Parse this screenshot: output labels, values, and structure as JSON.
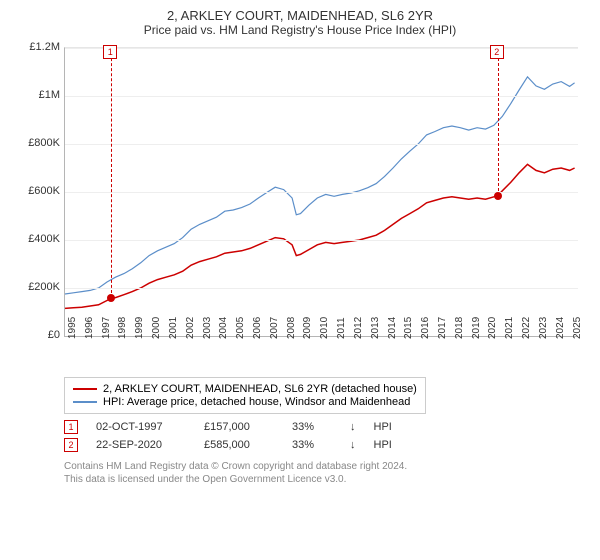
{
  "title": "2, ARKLEY COURT, MAIDENHEAD, SL6 2YR",
  "subtitle": "Price paid vs. HM Land Registry's House Price Index (HPI)",
  "chart": {
    "type": "line",
    "background": "#ffffff",
    "grid_color": "#eeeeee",
    "axis_color": "#b5b5b5",
    "xlim": [
      1995,
      2025.5
    ],
    "ylim": [
      0,
      1200000
    ],
    "yticks": [
      0,
      200000,
      400000,
      600000,
      800000,
      1000000,
      1200000
    ],
    "ytick_labels": [
      "£0",
      "£200K",
      "£400K",
      "£600K",
      "£800K",
      "£1M",
      "£1.2M"
    ],
    "xticks": [
      1995,
      1996,
      1997,
      1998,
      1999,
      2000,
      2001,
      2002,
      2003,
      2004,
      2005,
      2006,
      2007,
      2008,
      2009,
      2010,
      2011,
      2012,
      2013,
      2014,
      2015,
      2016,
      2017,
      2018,
      2019,
      2020,
      2021,
      2022,
      2023,
      2024,
      2025
    ],
    "xtick_labels": [
      "1995",
      "1996",
      "1997",
      "1998",
      "1999",
      "2000",
      "2001",
      "2002",
      "2003",
      "2004",
      "2005",
      "2006",
      "2007",
      "2008",
      "2009",
      "2010",
      "2011",
      "2012",
      "2013",
      "2014",
      "2015",
      "2016",
      "2017",
      "2018",
      "2019",
      "2020",
      "2021",
      "2022",
      "2023",
      "2024",
      "2025"
    ],
    "series": [
      {
        "name": "2, ARKLEY COURT, MAIDENHEAD, SL6 2YR (detached house)",
        "color": "#cc0000",
        "line_width": 1.5,
        "points": [
          [
            1995.0,
            115000
          ],
          [
            1995.5,
            118000
          ],
          [
            1996.0,
            120000
          ],
          [
            1996.5,
            125000
          ],
          [
            1997.0,
            130000
          ],
          [
            1997.5,
            148000
          ],
          [
            1997.75,
            157000
          ],
          [
            1998.0,
            160000
          ],
          [
            1998.5,
            172000
          ],
          [
            1999.0,
            185000
          ],
          [
            1999.5,
            200000
          ],
          [
            2000.0,
            220000
          ],
          [
            2000.5,
            235000
          ],
          [
            2001.0,
            245000
          ],
          [
            2001.5,
            255000
          ],
          [
            2002.0,
            270000
          ],
          [
            2002.5,
            295000
          ],
          [
            2003.0,
            310000
          ],
          [
            2003.5,
            320000
          ],
          [
            2004.0,
            330000
          ],
          [
            2004.5,
            345000
          ],
          [
            2005.0,
            350000
          ],
          [
            2005.5,
            355000
          ],
          [
            2006.0,
            365000
          ],
          [
            2006.5,
            380000
          ],
          [
            2007.0,
            395000
          ],
          [
            2007.5,
            410000
          ],
          [
            2008.0,
            405000
          ],
          [
            2008.5,
            380000
          ],
          [
            2008.75,
            335000
          ],
          [
            2009.0,
            340000
          ],
          [
            2009.5,
            360000
          ],
          [
            2010.0,
            380000
          ],
          [
            2010.5,
            390000
          ],
          [
            2011.0,
            385000
          ],
          [
            2011.5,
            390000
          ],
          [
            2012.0,
            395000
          ],
          [
            2012.5,
            400000
          ],
          [
            2013.0,
            410000
          ],
          [
            2013.5,
            420000
          ],
          [
            2014.0,
            440000
          ],
          [
            2014.5,
            465000
          ],
          [
            2015.0,
            490000
          ],
          [
            2015.5,
            510000
          ],
          [
            2016.0,
            530000
          ],
          [
            2016.5,
            555000
          ],
          [
            2017.0,
            565000
          ],
          [
            2017.5,
            575000
          ],
          [
            2018.0,
            580000
          ],
          [
            2018.5,
            575000
          ],
          [
            2019.0,
            570000
          ],
          [
            2019.5,
            575000
          ],
          [
            2020.0,
            570000
          ],
          [
            2020.5,
            580000
          ],
          [
            2020.73,
            585000
          ],
          [
            2021.0,
            605000
          ],
          [
            2021.5,
            640000
          ],
          [
            2022.0,
            680000
          ],
          [
            2022.5,
            715000
          ],
          [
            2023.0,
            690000
          ],
          [
            2023.5,
            680000
          ],
          [
            2024.0,
            695000
          ],
          [
            2024.5,
            700000
          ],
          [
            2025.0,
            690000
          ],
          [
            2025.3,
            700000
          ]
        ]
      },
      {
        "name": "HPI: Average price, detached house, Windsor and Maidenhead",
        "color": "#5b8ec9",
        "line_width": 1.2,
        "points": [
          [
            1995.0,
            175000
          ],
          [
            1995.5,
            180000
          ],
          [
            1996.0,
            185000
          ],
          [
            1996.5,
            190000
          ],
          [
            1997.0,
            200000
          ],
          [
            1997.5,
            225000
          ],
          [
            1998.0,
            245000
          ],
          [
            1998.5,
            260000
          ],
          [
            1999.0,
            280000
          ],
          [
            1999.5,
            305000
          ],
          [
            2000.0,
            335000
          ],
          [
            2000.5,
            355000
          ],
          [
            2001.0,
            370000
          ],
          [
            2001.5,
            385000
          ],
          [
            2002.0,
            410000
          ],
          [
            2002.5,
            445000
          ],
          [
            2003.0,
            465000
          ],
          [
            2003.5,
            480000
          ],
          [
            2004.0,
            495000
          ],
          [
            2004.5,
            520000
          ],
          [
            2005.0,
            525000
          ],
          [
            2005.5,
            535000
          ],
          [
            2006.0,
            550000
          ],
          [
            2006.5,
            575000
          ],
          [
            2007.0,
            598000
          ],
          [
            2007.5,
            620000
          ],
          [
            2008.0,
            610000
          ],
          [
            2008.5,
            575000
          ],
          [
            2008.75,
            505000
          ],
          [
            2009.0,
            510000
          ],
          [
            2009.5,
            545000
          ],
          [
            2010.0,
            575000
          ],
          [
            2010.5,
            590000
          ],
          [
            2011.0,
            582000
          ],
          [
            2011.5,
            590000
          ],
          [
            2012.0,
            596000
          ],
          [
            2012.5,
            605000
          ],
          [
            2013.0,
            618000
          ],
          [
            2013.5,
            635000
          ],
          [
            2014.0,
            665000
          ],
          [
            2014.5,
            700000
          ],
          [
            2015.0,
            738000
          ],
          [
            2015.5,
            770000
          ],
          [
            2016.0,
            800000
          ],
          [
            2016.5,
            838000
          ],
          [
            2017.0,
            852000
          ],
          [
            2017.5,
            868000
          ],
          [
            2018.0,
            875000
          ],
          [
            2018.5,
            868000
          ],
          [
            2019.0,
            858000
          ],
          [
            2019.5,
            868000
          ],
          [
            2020.0,
            862000
          ],
          [
            2020.5,
            878000
          ],
          [
            2021.0,
            915000
          ],
          [
            2021.5,
            968000
          ],
          [
            2022.0,
            1025000
          ],
          [
            2022.5,
            1080000
          ],
          [
            2023.0,
            1042000
          ],
          [
            2023.5,
            1028000
          ],
          [
            2024.0,
            1050000
          ],
          [
            2024.5,
            1060000
          ],
          [
            2025.0,
            1040000
          ],
          [
            2025.3,
            1055000
          ]
        ]
      }
    ],
    "markers": [
      {
        "id": "1",
        "color": "#cc0000",
        "x": 1997.75,
        "y": 157000
      },
      {
        "id": "2",
        "color": "#cc0000",
        "x": 2020.73,
        "y": 585000
      }
    ]
  },
  "legend": [
    {
      "color": "#cc0000",
      "label": "2, ARKLEY COURT, MAIDENHEAD, SL6 2YR (detached house)"
    },
    {
      "color": "#5b8ec9",
      "label": "HPI: Average price, detached house, Windsor and Maidenhead"
    }
  ],
  "events": [
    {
      "id": "1",
      "color": "#cc0000",
      "date": "02-OCT-1997",
      "price": "£157,000",
      "pct": "33%",
      "arrow": "↓",
      "tag": "HPI"
    },
    {
      "id": "2",
      "color": "#cc0000",
      "date": "22-SEP-2020",
      "price": "£585,000",
      "pct": "33%",
      "arrow": "↓",
      "tag": "HPI"
    }
  ],
  "footer_line1": "Contains HM Land Registry data © Crown copyright and database right 2024.",
  "footer_line2": "This data is licensed under the Open Government Licence v3.0."
}
